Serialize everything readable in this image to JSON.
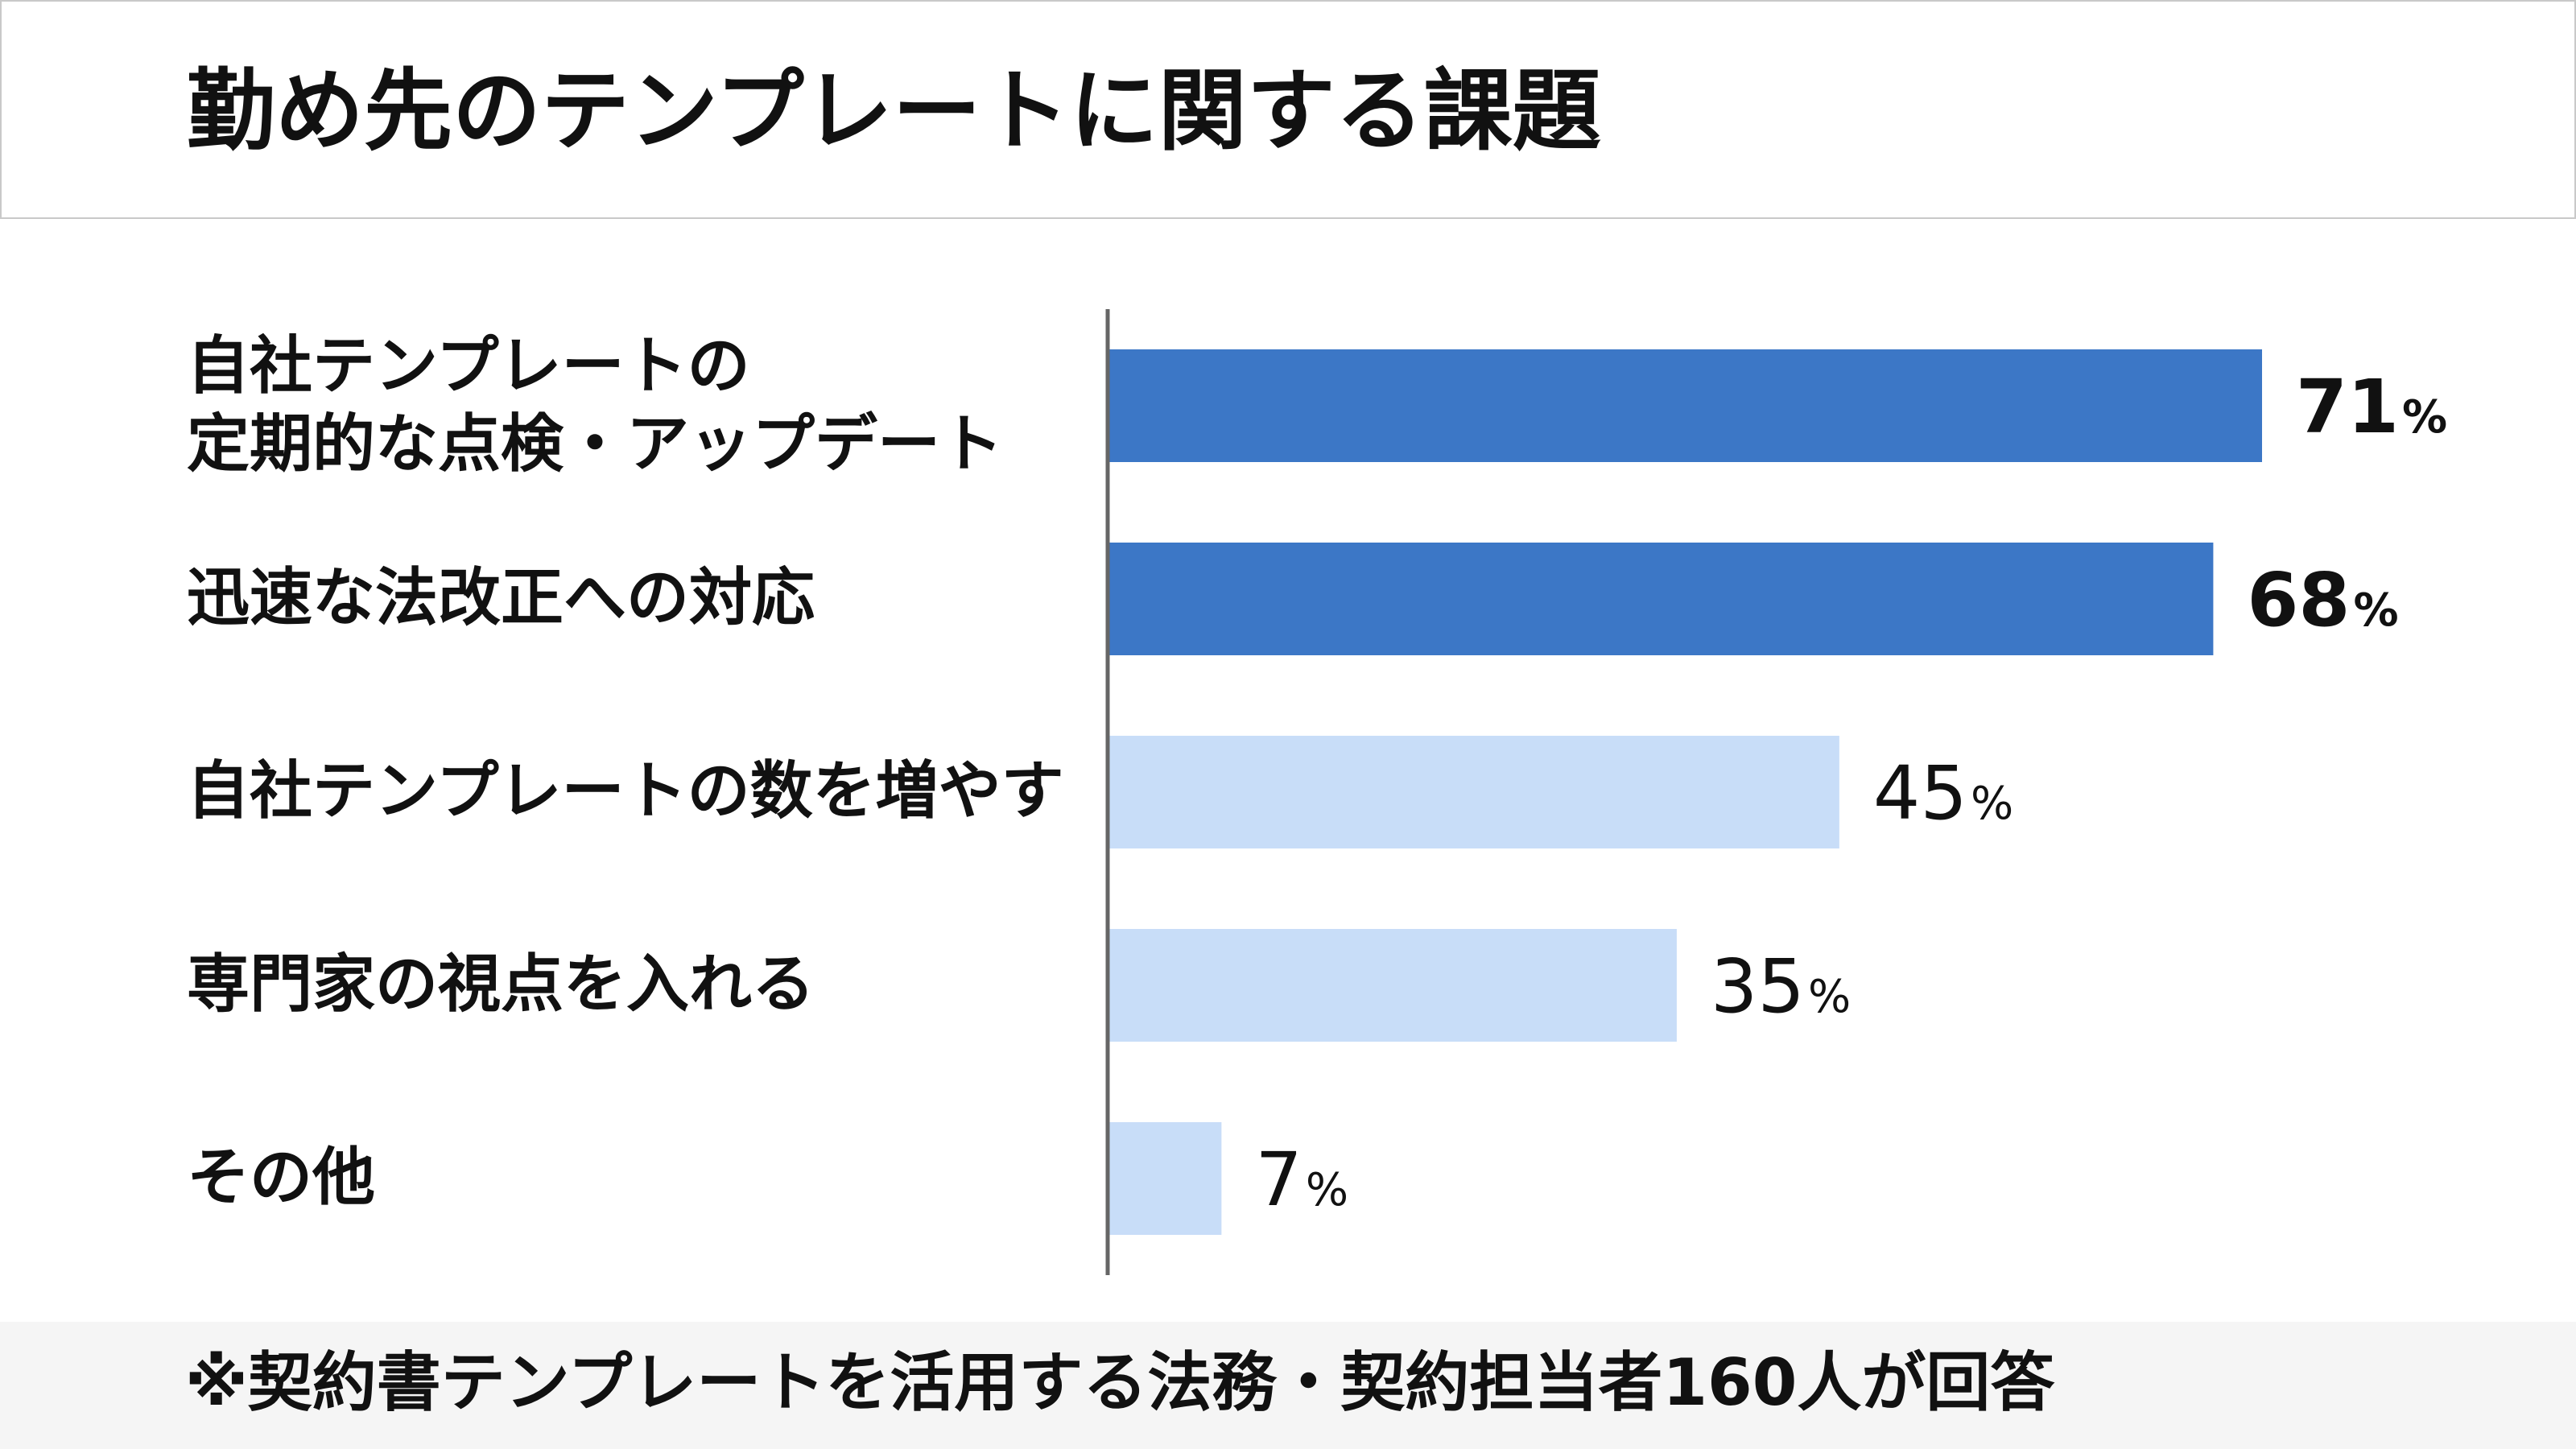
{
  "title": "勤め先のテンプレートに関する課題",
  "footnote": "※契約書テンプレートを活用する法務・契約担当者160人が回答",
  "colors": {
    "highlight": "#3c77c6",
    "normal": "#c8ddf8",
    "axis": "#666666"
  },
  "chart_data": {
    "type": "bar",
    "orientation": "horizontal",
    "unit": "%",
    "categories": [
      [
        "自社テンプレートの",
        "定期的な点検・アップデート"
      ],
      [
        "迅速な法改正への対応"
      ],
      [
        "自社テンプレートの数を増やす"
      ],
      [
        "専門家の視点を入れる"
      ],
      [
        "その他"
      ]
    ],
    "values": [
      71,
      68,
      45,
      35,
      7
    ],
    "highlighted": [
      true,
      true,
      false,
      false,
      false
    ],
    "xlim": [
      0,
      100
    ],
    "grid": false,
    "legend": "none"
  }
}
